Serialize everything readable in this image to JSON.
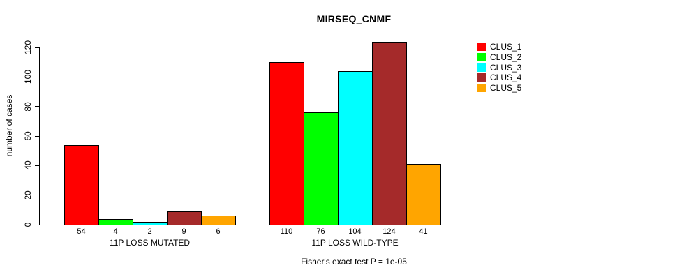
{
  "chart_data": {
    "type": "bar",
    "title": "MIRSEQ_CNMF",
    "xlabel": "",
    "ylabel": "number of cases",
    "annotation": "Fisher's exact test P = 1e-05",
    "categories": [
      "11P LOSS MUTATED",
      "11P LOSS WILD-TYPE"
    ],
    "series": [
      {
        "name": "CLUS_1",
        "color": "#FF0000",
        "values": [
          54,
          110
        ]
      },
      {
        "name": "CLUS_2",
        "color": "#00FF00",
        "values": [
          4,
          76
        ]
      },
      {
        "name": "CLUS_3",
        "color": "#00FFFF",
        "values": [
          2,
          104
        ]
      },
      {
        "name": "CLUS_4",
        "color": "#A52A2A",
        "values": [
          9,
          124
        ]
      },
      {
        "name": "CLUS_5",
        "color": "#FFA500",
        "values": [
          6,
          41
        ]
      }
    ],
    "bar_value_labels": [
      [
        "54",
        "4",
        "2",
        "9",
        "6"
      ],
      [
        "110",
        "76",
        "104",
        "124",
        "41"
      ]
    ],
    "yticks": [
      0,
      20,
      40,
      60,
      80,
      100,
      120
    ],
    "ylim": [
      0,
      130
    ],
    "grid": false,
    "legend_position": "right-outside",
    "bar_border_color": "#000000",
    "background_color": "#FFFFFF"
  }
}
